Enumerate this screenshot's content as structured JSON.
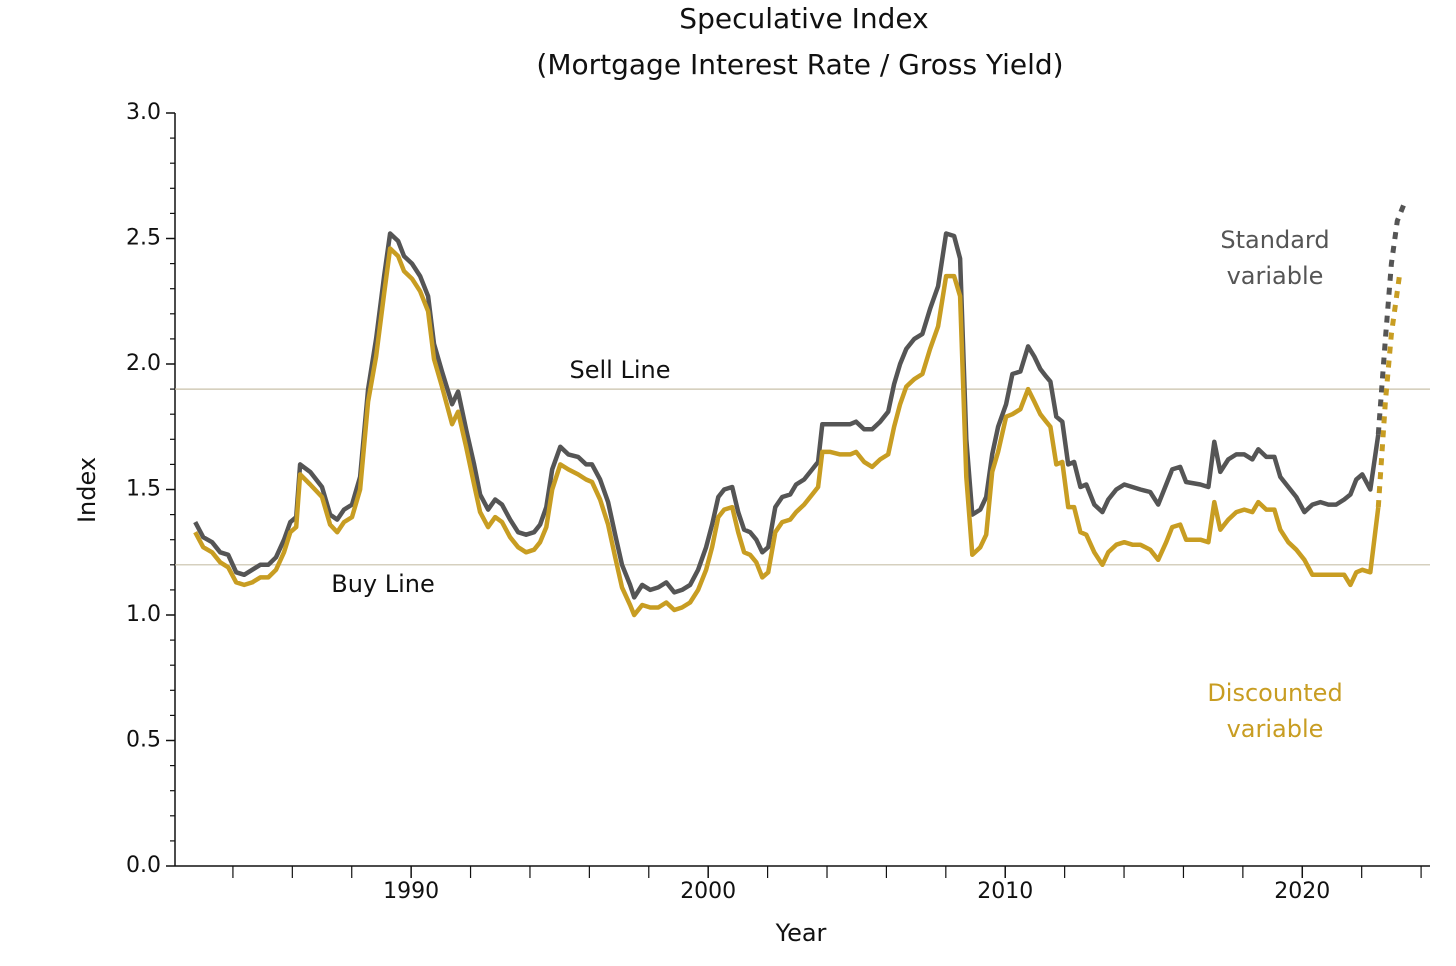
{
  "chart_data": {
    "type": "line",
    "title": "Speculative Index",
    "subtitle": "(Mortgage Interest Rate / Gross Yield)",
    "x_label": "Year",
    "y_label": "Index",
    "xlim": [
      1982.05,
      2024.3
    ],
    "ylim": [
      0,
      3
    ],
    "xticks": [
      1990,
      2000,
      2010,
      2020
    ],
    "xminor_ticks": [
      1984,
      1986,
      1988,
      1992,
      1994,
      1996,
      1998,
      2002,
      2004,
      2006,
      2008,
      2012,
      2014,
      2016,
      2018,
      2022,
      2024
    ],
    "yticks": [
      {
        "value": 0,
        "label": "0.0"
      },
      {
        "value": 0.5,
        "label": "0.5"
      },
      {
        "value": 1,
        "label": "1.0"
      },
      {
        "value": 1.5,
        "label": "1.5"
      },
      {
        "value": 2,
        "label": "2.0"
      },
      {
        "value": 2.5,
        "label": "2.5"
      },
      {
        "value": 3,
        "label": "3.0"
      }
    ],
    "yminor_ticks": [
      0.1,
      0.2,
      0.3,
      0.4,
      0.6,
      0.7,
      0.8,
      0.9,
      1.1,
      1.2,
      1.3,
      1.4,
      1.6,
      1.7,
      1.8,
      1.9,
      2.1,
      2.2,
      2.3,
      2.4,
      2.6,
      2.7,
      2.8,
      2.9
    ],
    "reference_lines": [
      {
        "label": "Sell Line",
        "value": 1.9,
        "color": "#c9c0aa"
      },
      {
        "label": "Buy Line",
        "value": 1.2,
        "color": "#c9c0aa"
      }
    ],
    "series": [
      {
        "name": "Standard variable",
        "color": "#555555",
        "x": [
          1982.73,
          1983.0,
          1983.3,
          1983.57,
          1983.84,
          1984.11,
          1984.38,
          1984.65,
          1984.92,
          1985.19,
          1985.45,
          1985.72,
          1985.93,
          1986.13,
          1986.26,
          1986.6,
          1987.0,
          1987.27,
          1987.51,
          1987.74,
          1988.01,
          1988.28,
          1988.55,
          1988.82,
          1989.09,
          1989.29,
          1989.56,
          1989.76,
          1990.03,
          1990.3,
          1990.57,
          1990.77,
          1991.04,
          1991.38,
          1991.58,
          1991.85,
          1992.12,
          1992.32,
          1992.59,
          1992.83,
          1993.06,
          1993.33,
          1993.6,
          1993.87,
          1994.14,
          1994.34,
          1994.55,
          1994.75,
          1995.02,
          1995.29,
          1995.62,
          1995.89,
          1996.09,
          1996.36,
          1996.63,
          1996.87,
          1997.1,
          1997.37,
          1997.51,
          1997.78,
          1998.05,
          1998.32,
          1998.59,
          1998.86,
          1999.12,
          1999.39,
          1999.66,
          1999.93,
          2000.13,
          2000.34,
          2000.54,
          2000.81,
          2001.01,
          2001.21,
          2001.41,
          2001.62,
          2001.82,
          2002.02,
          2002.26,
          2002.49,
          2002.76,
          2002.96,
          2003.23,
          2003.5,
          2003.7,
          2003.84,
          2004.11,
          2004.44,
          2004.78,
          2004.98,
          2005.25,
          2005.52,
          2005.79,
          2006.06,
          2006.26,
          2006.46,
          2006.67,
          2006.94,
          2007.21,
          2007.47,
          2007.74,
          2008.01,
          2008.28,
          2008.48,
          2008.69,
          2008.89,
          2009.16,
          2009.36,
          2009.56,
          2009.76,
          2010.03,
          2010.24,
          2010.51,
          2010.77,
          2010.98,
          2011.18,
          2011.38,
          2011.52,
          2011.72,
          2011.92,
          2012.12,
          2012.32,
          2012.53,
          2012.73,
          2013.0,
          2013.27,
          2013.47,
          2013.74,
          2014.01,
          2014.28,
          2014.55,
          2014.88,
          2015.15,
          2015.42,
          2015.62,
          2015.89,
          2016.09,
          2016.57,
          2016.84,
          2017.04,
          2017.24,
          2017.51,
          2017.78,
          2018.05,
          2018.32,
          2018.52,
          2018.79,
          2019.06,
          2019.26,
          2019.53,
          2019.8,
          2020.07,
          2020.34,
          2020.61,
          2020.88,
          2021.14,
          2021.41,
          2021.62,
          2021.82,
          2022.02,
          2022.29,
          2022.56
        ],
        "values": [
          1.37,
          1.31,
          1.29,
          1.25,
          1.24,
          1.17,
          1.16,
          1.18,
          1.2,
          1.2,
          1.23,
          1.3,
          1.37,
          1.39,
          1.6,
          1.57,
          1.51,
          1.4,
          1.38,
          1.42,
          1.44,
          1.55,
          1.9,
          2.1,
          2.35,
          2.52,
          2.49,
          2.43,
          2.4,
          2.35,
          2.27,
          2.08,
          1.97,
          1.84,
          1.89,
          1.74,
          1.6,
          1.48,
          1.42,
          1.46,
          1.44,
          1.38,
          1.33,
          1.32,
          1.33,
          1.36,
          1.43,
          1.58,
          1.67,
          1.64,
          1.63,
          1.6,
          1.6,
          1.54,
          1.45,
          1.32,
          1.2,
          1.12,
          1.07,
          1.12,
          1.1,
          1.11,
          1.13,
          1.09,
          1.1,
          1.12,
          1.18,
          1.27,
          1.36,
          1.47,
          1.5,
          1.51,
          1.41,
          1.34,
          1.33,
          1.3,
          1.25,
          1.27,
          1.43,
          1.47,
          1.48,
          1.52,
          1.54,
          1.58,
          1.61,
          1.76,
          1.76,
          1.76,
          1.76,
          1.77,
          1.74,
          1.74,
          1.77,
          1.81,
          1.92,
          2.0,
          2.06,
          2.1,
          2.12,
          2.22,
          2.31,
          2.52,
          2.51,
          2.42,
          1.7,
          1.4,
          1.42,
          1.47,
          1.64,
          1.75,
          1.84,
          1.96,
          1.97,
          2.07,
          2.03,
          1.98,
          1.95,
          1.93,
          1.79,
          1.77,
          1.6,
          1.61,
          1.51,
          1.52,
          1.44,
          1.41,
          1.46,
          1.5,
          1.52,
          1.51,
          1.5,
          1.49,
          1.44,
          1.52,
          1.58,
          1.59,
          1.53,
          1.52,
          1.51,
          1.69,
          1.57,
          1.62,
          1.64,
          1.64,
          1.62,
          1.66,
          1.63,
          1.63,
          1.55,
          1.51,
          1.47,
          1.41,
          1.44,
          1.45,
          1.44,
          1.44,
          1.46,
          1.48,
          1.54,
          1.56,
          1.5,
          1.72
        ],
        "forecast_x": [
          2022.56,
          2022.8,
          2023.0,
          2023.2,
          2023.47
        ],
        "forecast_values": [
          1.72,
          2.1,
          2.4,
          2.57,
          2.65
        ]
      },
      {
        "name": "Discounted variable",
        "color": "#c89d22",
        "x": [
          1982.73,
          1983.0,
          1983.3,
          1983.57,
          1983.84,
          1984.11,
          1984.38,
          1984.65,
          1984.92,
          1985.19,
          1985.45,
          1985.72,
          1985.93,
          1986.13,
          1986.26,
          1986.6,
          1987.0,
          1987.27,
          1987.51,
          1987.74,
          1988.01,
          1988.28,
          1988.55,
          1988.82,
          1989.09,
          1989.29,
          1989.56,
          1989.76,
          1990.03,
          1990.3,
          1990.57,
          1990.77,
          1991.04,
          1991.38,
          1991.58,
          1991.85,
          1992.12,
          1992.32,
          1992.59,
          1992.83,
          1993.06,
          1993.33,
          1993.6,
          1993.87,
          1994.14,
          1994.34,
          1994.55,
          1994.75,
          1995.02,
          1995.29,
          1995.62,
          1995.89,
          1996.09,
          1996.36,
          1996.63,
          1996.87,
          1997.1,
          1997.37,
          1997.51,
          1997.78,
          1998.05,
          1998.32,
          1998.59,
          1998.86,
          1999.12,
          1999.39,
          1999.66,
          1999.93,
          2000.13,
          2000.34,
          2000.54,
          2000.81,
          2001.01,
          2001.21,
          2001.41,
          2001.62,
          2001.82,
          2002.02,
          2002.26,
          2002.49,
          2002.76,
          2002.96,
          2003.23,
          2003.5,
          2003.7,
          2003.84,
          2004.11,
          2004.44,
          2004.78,
          2004.98,
          2005.25,
          2005.52,
          2005.79,
          2006.06,
          2006.26,
          2006.46,
          2006.67,
          2006.94,
          2007.21,
          2007.47,
          2007.74,
          2008.01,
          2008.28,
          2008.48,
          2008.69,
          2008.89,
          2009.16,
          2009.36,
          2009.56,
          2009.76,
          2010.03,
          2010.24,
          2010.51,
          2010.77,
          2010.98,
          2011.18,
          2011.38,
          2011.52,
          2011.72,
          2011.92,
          2012.12,
          2012.32,
          2012.53,
          2012.73,
          2013.0,
          2013.27,
          2013.47,
          2013.74,
          2014.01,
          2014.28,
          2014.55,
          2014.88,
          2015.15,
          2015.42,
          2015.62,
          2015.89,
          2016.09,
          2016.57,
          2016.84,
          2017.04,
          2017.24,
          2017.51,
          2017.78,
          2018.05,
          2018.32,
          2018.52,
          2018.79,
          2019.06,
          2019.26,
          2019.53,
          2019.8,
          2020.07,
          2020.34,
          2020.61,
          2020.88,
          2021.14,
          2021.41,
          2021.62,
          2021.82,
          2022.02,
          2022.29,
          2022.56
        ],
        "values": [
          1.33,
          1.27,
          1.25,
          1.21,
          1.19,
          1.13,
          1.12,
          1.13,
          1.15,
          1.15,
          1.18,
          1.25,
          1.33,
          1.35,
          1.56,
          1.52,
          1.47,
          1.36,
          1.33,
          1.37,
          1.39,
          1.5,
          1.85,
          2.03,
          2.28,
          2.46,
          2.43,
          2.37,
          2.34,
          2.29,
          2.21,
          2.02,
          1.91,
          1.76,
          1.81,
          1.67,
          1.52,
          1.41,
          1.35,
          1.39,
          1.37,
          1.31,
          1.27,
          1.25,
          1.26,
          1.29,
          1.35,
          1.5,
          1.6,
          1.58,
          1.56,
          1.54,
          1.53,
          1.46,
          1.36,
          1.23,
          1.11,
          1.04,
          1.0,
          1.04,
          1.03,
          1.03,
          1.05,
          1.02,
          1.03,
          1.05,
          1.1,
          1.18,
          1.27,
          1.39,
          1.42,
          1.43,
          1.33,
          1.25,
          1.24,
          1.21,
          1.15,
          1.17,
          1.33,
          1.37,
          1.38,
          1.41,
          1.44,
          1.48,
          1.51,
          1.65,
          1.65,
          1.64,
          1.64,
          1.65,
          1.61,
          1.59,
          1.62,
          1.64,
          1.75,
          1.84,
          1.91,
          1.94,
          1.96,
          2.06,
          2.15,
          2.35,
          2.35,
          2.27,
          1.55,
          1.24,
          1.27,
          1.32,
          1.57,
          1.65,
          1.79,
          1.8,
          1.82,
          1.9,
          1.85,
          1.8,
          1.77,
          1.75,
          1.6,
          1.61,
          1.43,
          1.43,
          1.33,
          1.32,
          1.25,
          1.2,
          1.25,
          1.28,
          1.29,
          1.28,
          1.28,
          1.26,
          1.22,
          1.29,
          1.35,
          1.36,
          1.3,
          1.3,
          1.29,
          1.45,
          1.34,
          1.38,
          1.41,
          1.42,
          1.41,
          1.45,
          1.42,
          1.42,
          1.34,
          1.29,
          1.26,
          1.22,
          1.16,
          1.16,
          1.16,
          1.16,
          1.16,
          1.12,
          1.17,
          1.18,
          1.17,
          1.43
        ],
        "forecast_x": [
          2022.56,
          2022.8,
          2023.0,
          2023.27
        ],
        "forecast_values": [
          1.43,
          1.85,
          2.12,
          2.35
        ]
      }
    ]
  }
}
